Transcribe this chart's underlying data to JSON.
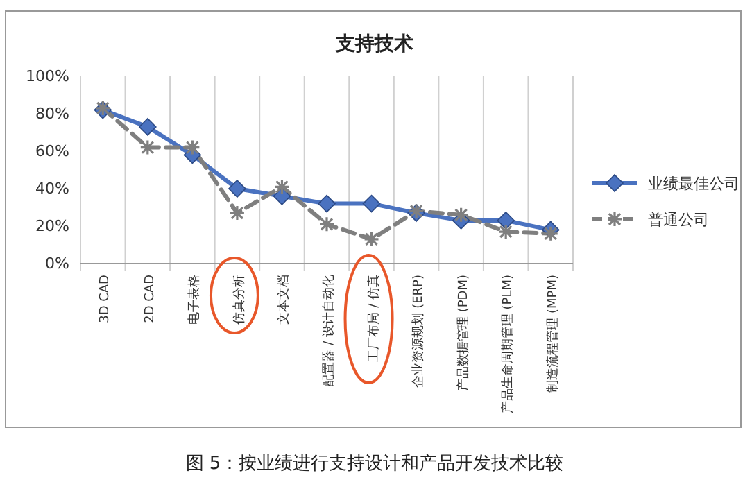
{
  "chart_data": {
    "type": "line",
    "title": "支持技术",
    "categories": [
      "3D CAD",
      "2D CAD",
      "电子表格",
      "仿真分析",
      "文本文档",
      "配置器 / 设计自动化",
      "工厂布局 / 仿真",
      "企业资源规划 (ERP)",
      "产品数据管理 (PDM)",
      "产品生命周期管理 (PLM)",
      "制造流程管理 (MPM)"
    ],
    "series": [
      {
        "name": "业绩最佳公司",
        "color": "#4a72c0",
        "marker": "diamond",
        "line_style": "solid",
        "values": [
          82,
          73,
          58,
          40,
          36,
          32,
          32,
          27,
          23,
          23,
          18
        ]
      },
      {
        "name": "普通公司",
        "color": "#7f7f7f",
        "marker": "cross",
        "line_style": "dashed",
        "values": [
          83,
          62,
          62,
          27,
          41,
          21,
          13,
          28,
          26,
          17,
          16
        ]
      }
    ],
    "ylim": [
      0,
      100
    ],
    "yticks": [
      {
        "value": 0,
        "label": "0%"
      },
      {
        "value": 20,
        "label": "20%"
      },
      {
        "value": 40,
        "label": "40%"
      },
      {
        "value": 60,
        "label": "60%"
      },
      {
        "value": 80,
        "label": "80%"
      },
      {
        "value": 100,
        "label": "100%"
      }
    ],
    "grid": "x",
    "legend": "right",
    "annotations": [
      "图 5：按业绩进行支持设计和产品开发技术比较"
    ]
  }
}
